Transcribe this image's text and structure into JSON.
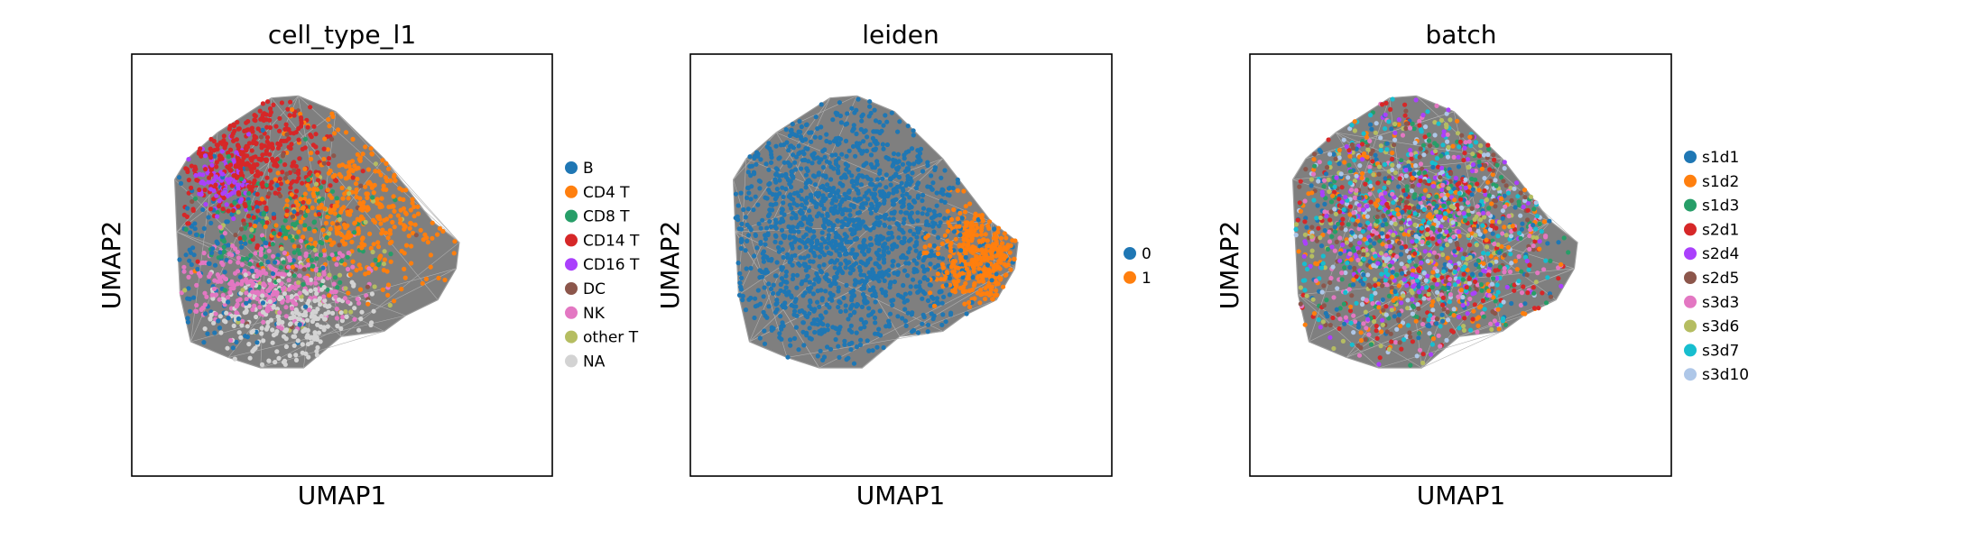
{
  "chart_data": [
    {
      "type": "scatter",
      "title": "cell_type_l1",
      "xlabel": "UMAP1",
      "ylabel": "UMAP2",
      "legend_position": "right",
      "grid": false,
      "ticks": false,
      "series": [
        {
          "name": "B",
          "color": "#1f77b4"
        },
        {
          "name": "CD4 T",
          "color": "#ff7f0e"
        },
        {
          "name": "CD8 T",
          "color": "#279e68"
        },
        {
          "name": "CD14 T",
          "color": "#d62728"
        },
        {
          "name": "CD16 T",
          "color": "#aa40fc"
        },
        {
          "name": "DC",
          "color": "#8c564b"
        },
        {
          "name": "NK",
          "color": "#e377c2"
        },
        {
          "name": "other T",
          "color": "#b5bd61"
        },
        {
          "name": "NA",
          "color": "#d3d3d3"
        }
      ]
    },
    {
      "type": "scatter",
      "title": "leiden",
      "xlabel": "UMAP1",
      "ylabel": "UMAP2",
      "legend_position": "right",
      "grid": false,
      "ticks": false,
      "series": [
        {
          "name": "0",
          "color": "#1f77b4"
        },
        {
          "name": "1",
          "color": "#ff7f0e"
        }
      ]
    },
    {
      "type": "scatter",
      "title": "batch",
      "xlabel": "UMAP1",
      "ylabel": "UMAP2",
      "legend_position": "right",
      "grid": false,
      "ticks": false,
      "series": [
        {
          "name": "s1d1",
          "color": "#1f77b4"
        },
        {
          "name": "s1d2",
          "color": "#ff7f0e"
        },
        {
          "name": "s1d3",
          "color": "#279e68"
        },
        {
          "name": "s2d1",
          "color": "#d62728"
        },
        {
          "name": "s2d4",
          "color": "#aa40fc"
        },
        {
          "name": "s2d5",
          "color": "#8c564b"
        },
        {
          "name": "s3d3",
          "color": "#e377c2"
        },
        {
          "name": "s3d6",
          "color": "#b5bd61"
        },
        {
          "name": "s3d7",
          "color": "#17becf"
        },
        {
          "name": "s3d10",
          "color": "#aec7e8"
        }
      ]
    }
  ]
}
